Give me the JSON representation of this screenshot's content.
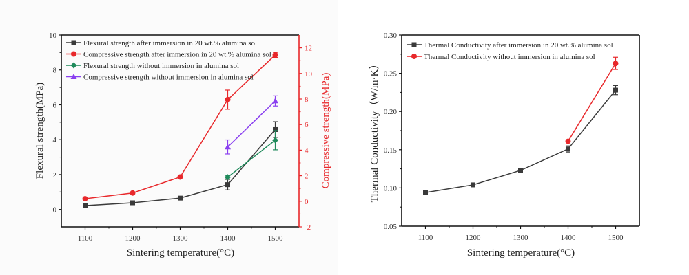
{
  "chart_data": [
    {
      "type": "line",
      "title": "",
      "xlabel": "Sintering temperature(°C)",
      "ylabel": "Flexural strength(MPa)",
      "y2label": "Compressive strength(MPa)",
      "xlim": [
        1050,
        1550
      ],
      "ylim": [
        -1,
        10
      ],
      "y2lim": [
        -2,
        13
      ],
      "xticks": [
        1100,
        1200,
        1300,
        1400,
        1500
      ],
      "xminor": [
        1150,
        1250,
        1350,
        1450
      ],
      "yticks": [
        0,
        2,
        4,
        6,
        8,
        10
      ],
      "y2ticks": [
        -2,
        0,
        2,
        4,
        6,
        8,
        10,
        12
      ],
      "grid": false,
      "legend_position": "top-left",
      "axis_color_y2": "#e8282b",
      "series": [
        {
          "name": "Flexural strength after immersion in 20 wt.% alumina sol",
          "axis": "left",
          "marker": "square",
          "color": "#3a3a3a",
          "x": [
            1100,
            1200,
            1300,
            1400,
            1500
          ],
          "y": [
            0.22,
            0.38,
            0.65,
            1.42,
            4.58
          ],
          "err": [
            0.05,
            0.08,
            0.05,
            0.3,
            0.45
          ]
        },
        {
          "name": "Compressive strength after immersion in 20 wt.% alumina sol",
          "axis": "right",
          "marker": "circle",
          "color": "#e8282b",
          "x": [
            1100,
            1200,
            1300,
            1400,
            1500
          ],
          "y": [
            0.2,
            0.65,
            1.9,
            7.95,
            11.45
          ],
          "err": [
            0.05,
            0.05,
            0.05,
            0.75,
            0.2
          ]
        },
        {
          "name": "Flexural strength without immersion in alumina sol",
          "axis": "left",
          "marker": "diamond",
          "color": "#1f8a5b",
          "x": [
            1400,
            1500
          ],
          "y": [
            1.85,
            3.97
          ],
          "err": [
            0.1,
            0.55
          ]
        },
        {
          "name": "Compressive strength without immersion in alumina sol",
          "axis": "right",
          "marker": "triangle",
          "color": "#8a3ff0",
          "x": [
            1400,
            1500
          ],
          "y": [
            4.25,
            7.85
          ],
          "err": [
            0.55,
            0.4
          ]
        }
      ]
    },
    {
      "type": "line",
      "title": "",
      "xlabel": "Sintering temperature(°C)",
      "ylabel": "Thermal Conductivity（W/m·K）",
      "xlim": [
        1050,
        1550
      ],
      "ylim": [
        0.05,
        0.3
      ],
      "xticks": [
        1100,
        1200,
        1300,
        1400,
        1500
      ],
      "xminor": [
        1150,
        1250,
        1350,
        1450
      ],
      "yticks": [
        0.05,
        0.1,
        0.15,
        0.2,
        0.25,
        0.3
      ],
      "ytick_labels": [
        "0.05",
        "0.10",
        "0.15",
        "0.20",
        "0.25",
        "0.30"
      ],
      "grid": false,
      "legend_position": "top-left",
      "series": [
        {
          "name": "Thermal Conductivity after immersion in 20 wt.% alumina sol",
          "marker": "square",
          "color": "#3a3a3a",
          "x": [
            1100,
            1200,
            1300,
            1400,
            1500
          ],
          "y": [
            0.094,
            0.104,
            0.123,
            0.151,
            0.228
          ],
          "err": [
            0.002,
            0.002,
            0.002,
            0.004,
            0.006
          ]
        },
        {
          "name": "Thermal Conductivity without  immersion in alumina sol",
          "marker": "circle",
          "color": "#e8282b",
          "x": [
            1400,
            1500
          ],
          "y": [
            0.161,
            0.263
          ],
          "err": [
            0.002,
            0.008
          ]
        }
      ]
    }
  ]
}
